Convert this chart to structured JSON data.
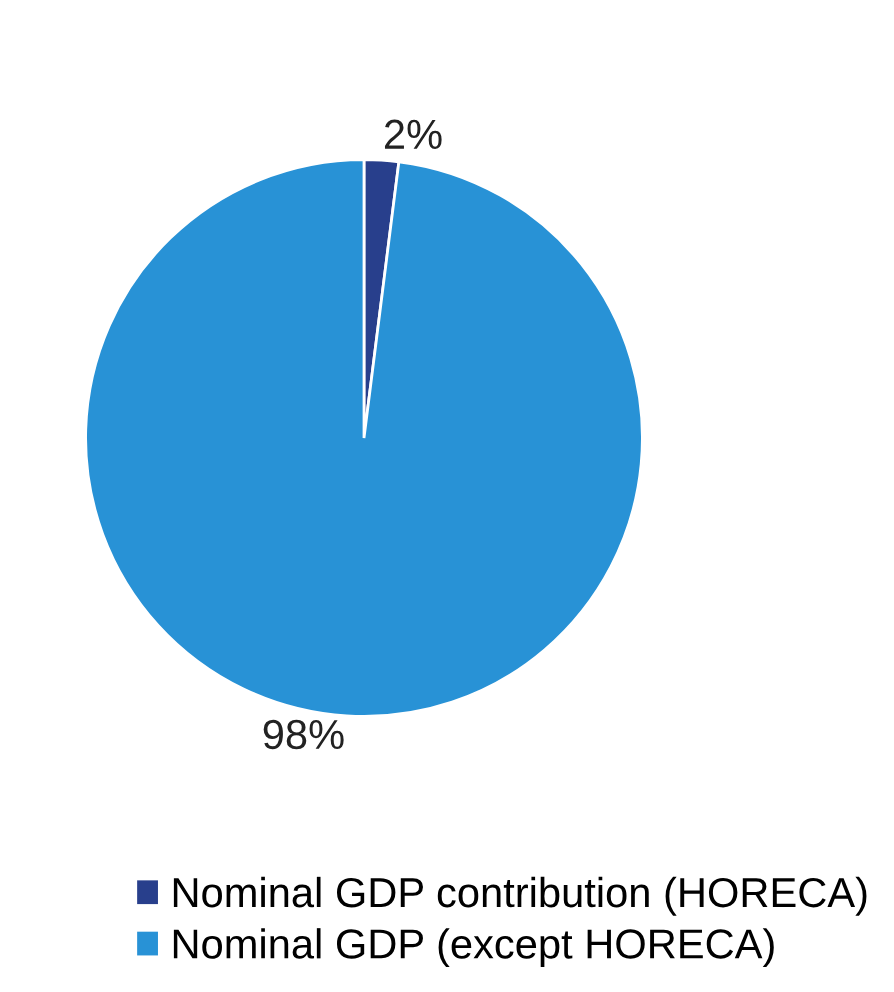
{
  "chart_data": {
    "type": "pie",
    "categories": [
      "Nominal GDP contribution (HORECA)",
      "Nominal GDP (except HORECA)"
    ],
    "values": [
      2,
      98
    ],
    "colors": [
      "#283f8c",
      "#2892d6"
    ],
    "value_labels": [
      "2%",
      "98%"
    ],
    "legend": "bottom"
  }
}
